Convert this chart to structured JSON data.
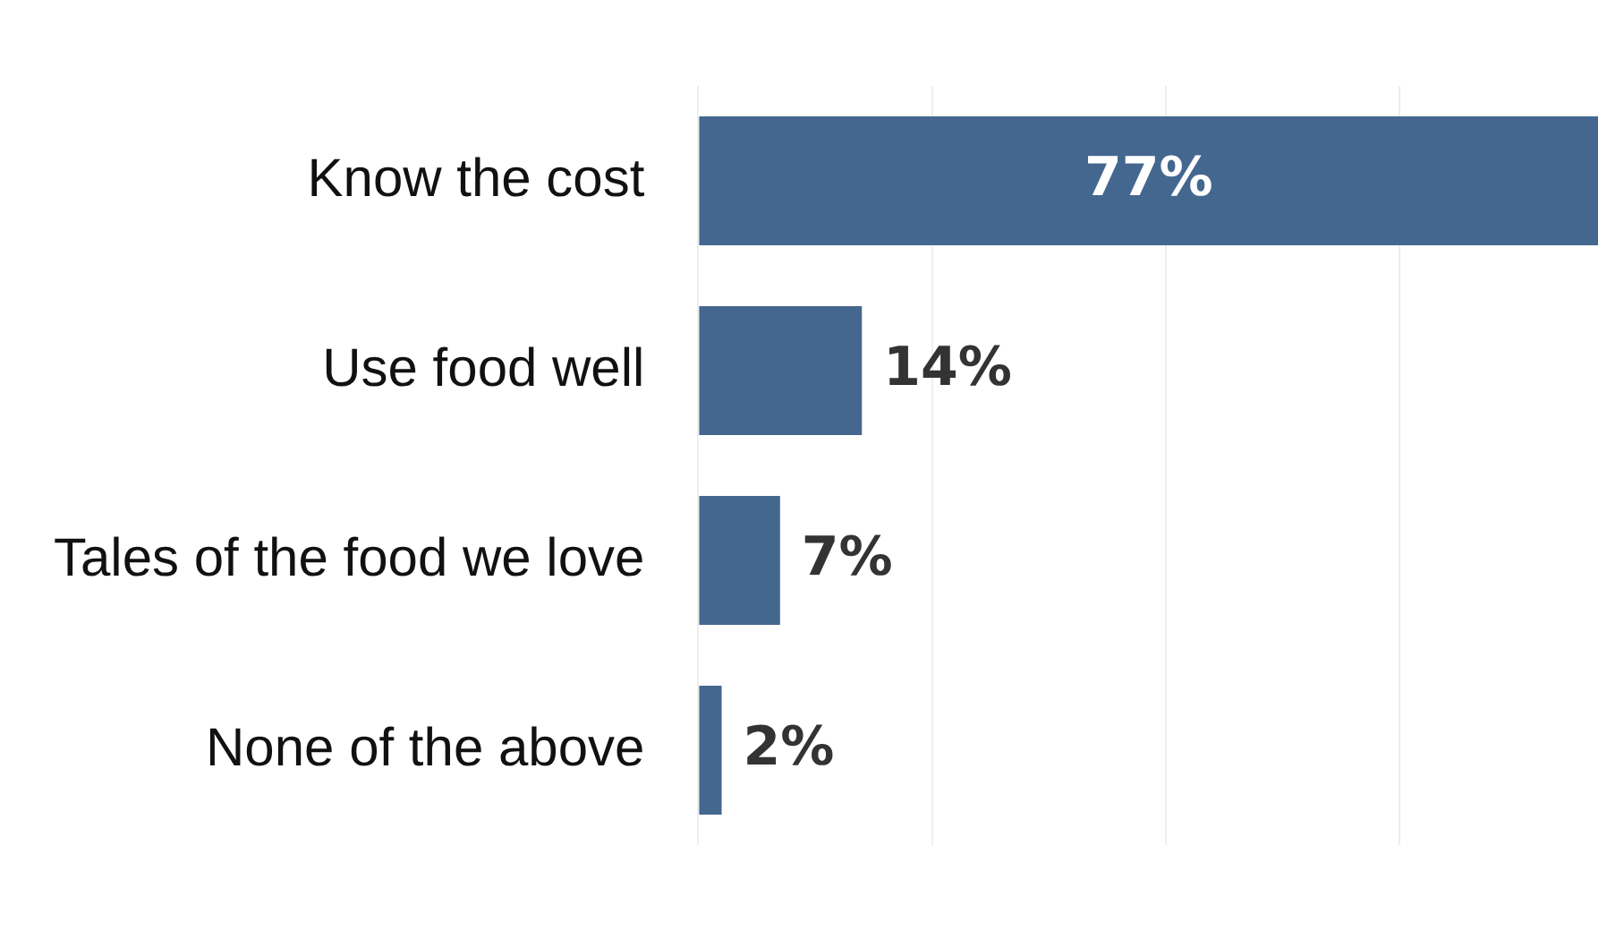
{
  "chart_data": {
    "type": "bar",
    "orientation": "horizontal",
    "categories": [
      "Know the cost",
      "Use food well",
      "Tales of the food we love",
      "None of the above"
    ],
    "values": [
      77,
      14,
      7,
      2
    ],
    "color": "#44678f",
    "value_labels": [
      "77%",
      "14%",
      "7%",
      "2%"
    ],
    "xlim": [
      0,
      77
    ],
    "xticks": [
      {
        "value": 0,
        "label": null
      },
      {
        "value": 20,
        "label": null
      },
      {
        "value": 40,
        "label": null
      },
      {
        "value": 60,
        "label": null
      }
    ],
    "grid": "x",
    "tick_labels": "y",
    "legend": false
  }
}
